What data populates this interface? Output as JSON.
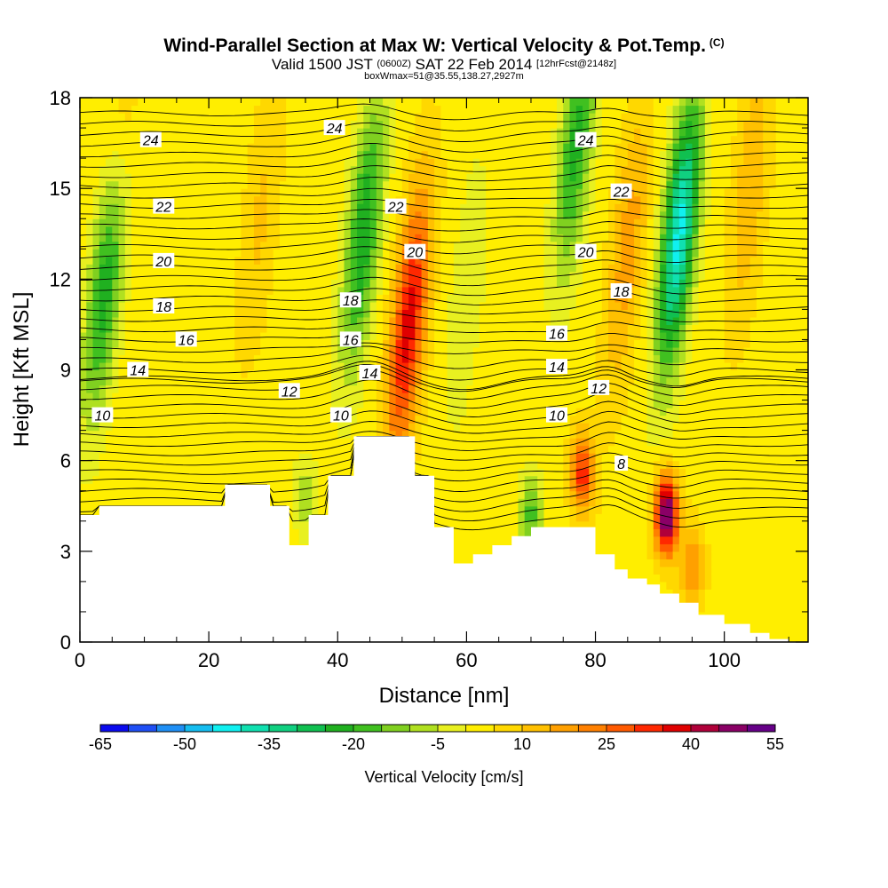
{
  "title": {
    "main": "Wind-Parallel Section at Max W: Vertical Velocity & Pot.Temp.",
    "tag": "(C)",
    "valid_prefix": "Valid 1500 JST",
    "valid_utc": "(0600Z)",
    "valid_date": "SAT 22 Feb 2014",
    "forecast": "[12hrFcst@2148z]",
    "boxinfo": "boxWmax=51@35.55,138.27,2927m"
  },
  "chart_data": {
    "type": "heatmap",
    "xlabel": "Distance [nm]",
    "ylabel": "Height [Kft MSL]",
    "xlim": [
      0,
      113
    ],
    "ylim": [
      0,
      18
    ],
    "x_ticks": [
      "0",
      "20",
      "40",
      "60",
      "80",
      "100"
    ],
    "x_tick_values": [
      0,
      20,
      40,
      60,
      80,
      100
    ],
    "y_ticks": [
      "0",
      "3",
      "6",
      "9",
      "12",
      "15",
      "18"
    ],
    "y_tick_values": [
      0,
      3,
      6,
      9,
      12,
      15,
      18
    ],
    "colorbar": {
      "title": "Vertical Velocity [cm/s]",
      "labels": [
        "-65",
        "-50",
        "-35",
        "-20",
        "-5",
        "10",
        "25",
        "40",
        "55"
      ],
      "levels": [
        -65,
        -60,
        -55,
        -50,
        -45,
        -40,
        -35,
        -30,
        -25,
        -20,
        -15,
        -10,
        -5,
        0,
        5,
        10,
        15,
        20,
        25,
        30,
        35,
        40,
        45,
        50,
        55
      ],
      "colors": [
        "#0a0aee",
        "#1f4ff5",
        "#1f8ff5",
        "#15bdf0",
        "#10f0f0",
        "#10e0b0",
        "#10d080",
        "#10c050",
        "#20b020",
        "#40c020",
        "#80d020",
        "#b0e020",
        "#e8f020",
        "#ffee00",
        "#ffd800",
        "#ffc000",
        "#ffa000",
        "#ff8000",
        "#ff5a00",
        "#ff2800",
        "#e00000",
        "#b0003a",
        "#8a0066",
        "#660088"
      ]
    },
    "updraft_cores": [
      {
        "x": 51,
        "z": 10.5,
        "w": 35
      },
      {
        "x": 91,
        "z": 4.2,
        "w": 51
      },
      {
        "x": 78,
        "z": 5.6,
        "w": 30
      },
      {
        "x": 85,
        "z": 13.0,
        "w": 15
      },
      {
        "x": 6,
        "z": 16.0,
        "w": 10
      },
      {
        "x": 104,
        "z": 15.0,
        "w": 12
      },
      {
        "x": 28,
        "z": 14.0,
        "w": 8
      },
      {
        "x": 95,
        "z": 2.5,
        "w": 18
      }
    ],
    "downdraft_cores": [
      {
        "x": 4,
        "z": 12.0,
        "w": -30
      },
      {
        "x": 44,
        "z": 13.5,
        "w": -28
      },
      {
        "x": 93,
        "z": 13.5,
        "w": -45
      },
      {
        "x": 77,
        "z": 16.5,
        "w": -25
      },
      {
        "x": 70,
        "z": 4.2,
        "w": -20
      },
      {
        "x": 35,
        "z": 4.8,
        "w": -12
      },
      {
        "x": 60,
        "z": 11.5,
        "w": -8
      }
    ],
    "terrain": {
      "x": [
        0,
        3,
        3,
        22.5,
        22.5,
        29.5,
        29.5,
        32.5,
        32.5,
        35.5,
        35.5,
        38.5,
        38.5,
        42.5,
        42.5,
        52,
        52,
        55,
        55,
        58,
        58,
        61,
        61,
        64,
        64,
        67,
        67,
        70,
        70,
        73,
        73,
        80,
        80,
        83,
        83,
        85,
        85,
        88,
        88,
        90,
        90,
        93,
        93,
        96,
        96,
        100,
        100,
        104,
        104,
        107,
        107,
        110,
        110,
        113
      ],
      "z": [
        4.2,
        4.2,
        4.5,
        4.5,
        5.2,
        5.2,
        4.5,
        4.5,
        3.2,
        3.2,
        4.2,
        4.2,
        5.5,
        5.5,
        6.8,
        6.8,
        5.5,
        5.5,
        3.8,
        3.8,
        2.6,
        2.6,
        2.9,
        2.9,
        3.2,
        3.2,
        3.5,
        3.5,
        3.8,
        3.8,
        3.8,
        3.8,
        2.9,
        2.9,
        2.4,
        2.4,
        2.1,
        2.1,
        1.9,
        1.9,
        1.6,
        1.6,
        1.3,
        1.3,
        0.9,
        0.9,
        0.6,
        0.6,
        0.3,
        0.3,
        0.1,
        0.1,
        0.0,
        0.0
      ]
    },
    "theta_contours": {
      "levels": [
        8,
        10,
        12,
        14,
        16,
        18,
        20,
        22,
        24
      ],
      "base_level": 6,
      "spacing_c": 1,
      "labels": [
        {
          "text": "24",
          "x": 11,
          "z": 16.6
        },
        {
          "text": "24",
          "x": 39.5,
          "z": 17.0
        },
        {
          "text": "24",
          "x": 78.5,
          "z": 16.6
        },
        {
          "text": "22",
          "x": 13,
          "z": 14.4
        },
        {
          "text": "22",
          "x": 49,
          "z": 14.4
        },
        {
          "text": "22",
          "x": 84,
          "z": 14.9
        },
        {
          "text": "20",
          "x": 13,
          "z": 12.6
        },
        {
          "text": "20",
          "x": 52,
          "z": 12.9
        },
        {
          "text": "20",
          "x": 78.5,
          "z": 12.9
        },
        {
          "text": "18",
          "x": 13,
          "z": 11.1
        },
        {
          "text": "18",
          "x": 42,
          "z": 11.3
        },
        {
          "text": "18",
          "x": 84,
          "z": 11.6
        },
        {
          "text": "16",
          "x": 16.5,
          "z": 10.0
        },
        {
          "text": "16",
          "x": 42,
          "z": 10.0
        },
        {
          "text": "16",
          "x": 74,
          "z": 10.2
        },
        {
          "text": "14",
          "x": 9,
          "z": 9.0
        },
        {
          "text": "14",
          "x": 45,
          "z": 8.9
        },
        {
          "text": "14",
          "x": 74,
          "z": 9.1
        },
        {
          "text": "12",
          "x": 32.5,
          "z": 8.3
        },
        {
          "text": "12",
          "x": 80.5,
          "z": 8.4
        },
        {
          "text": "10",
          "x": 3.5,
          "z": 7.5
        },
        {
          "text": "10",
          "x": 40.5,
          "z": 7.5
        },
        {
          "text": "10",
          "x": 74,
          "z": 7.5
        },
        {
          "text": "8",
          "x": 84,
          "z": 5.9
        }
      ]
    }
  }
}
